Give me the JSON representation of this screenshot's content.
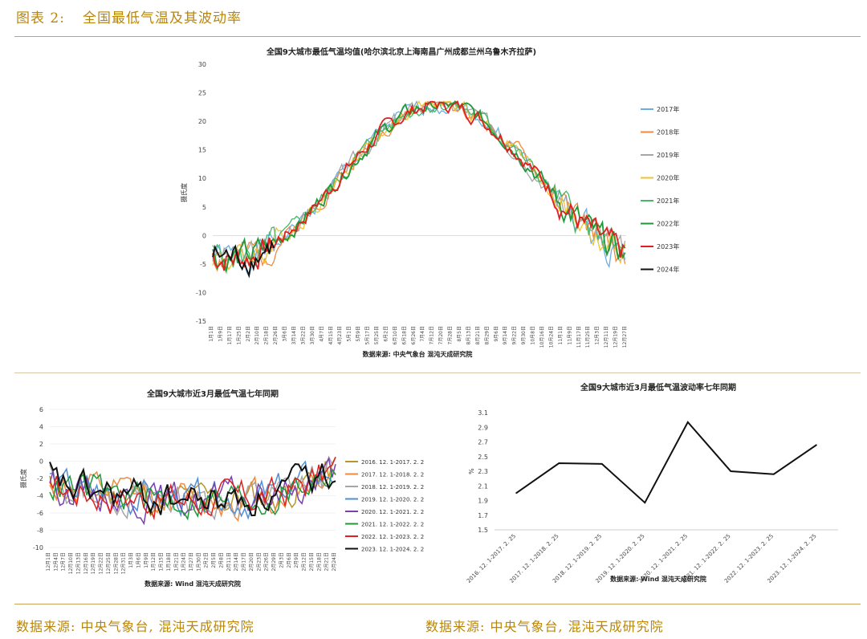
{
  "figure": {
    "label": "图表 2:",
    "title": "全国最低气温及其波动率"
  },
  "footer": {
    "left_source": "数据来源: 中央气象台, 混沌天成研究院",
    "right_source": "数据来源: 中央气象台, 混沌天成研究院"
  },
  "colors": {
    "accent": "#b8860b",
    "rule": "#c9a25a"
  },
  "chart_data": [
    {
      "type": "line",
      "title": "全国9大城市最低气温均值(哈尔滨北京上海南昌广州成都兰州乌鲁木齐拉萨)",
      "ylabel": "摄氏度",
      "source_note": "数据来源: 中央气象台 混沌天成研究院",
      "ylim": [
        -15,
        30
      ],
      "yticks": [
        30,
        25,
        20,
        15,
        10,
        5,
        0,
        -5,
        -10,
        -15
      ],
      "x_tick_labels": [
        "1月1日",
        "1月9日",
        "1月17日",
        "1月25日",
        "2月2日",
        "2月10日",
        "2月18日",
        "2月26日",
        "3月6日",
        "3月14日",
        "3月22日",
        "3月30日",
        "4月7日",
        "4月15日",
        "4月23日",
        "5月1日",
        "5月9日",
        "5月17日",
        "5月25日",
        "6月2日",
        "6月10日",
        "6月18日",
        "6月26日",
        "7月4日",
        "7月12日",
        "7月20日",
        "7月28日",
        "8月5日",
        "8月13日",
        "8月21日",
        "8月29日",
        "9月6日",
        "9月14日",
        "9月22日",
        "9月30日",
        "10月8日",
        "10月16日",
        "10月24日",
        "11月1日",
        "11月9日",
        "11月17日",
        "11月25日",
        "12月3日",
        "12月11日",
        "12月19日",
        "12月27日"
      ],
      "legend_position": "right",
      "series": [
        {
          "name": "2017年",
          "color": "#6aaee6",
          "seed": 1
        },
        {
          "name": "2018年",
          "color": "#f08a3e",
          "seed": 2
        },
        {
          "name": "2019年",
          "color": "#a6a6a6",
          "seed": 3
        },
        {
          "name": "2020年",
          "color": "#f2c12e",
          "seed": 4
        },
        {
          "name": "2021年",
          "color": "#46b86b",
          "seed": 5
        },
        {
          "name": "2022年",
          "color": "#1f9a3a",
          "seed": 6
        },
        {
          "name": "2023年",
          "color": "#e02020",
          "seed": 7
        },
        {
          "name": "2024年",
          "color": "#111111",
          "seed": 8,
          "days": 56
        }
      ],
      "profile_note": "annual curve peaking near 23 around late July, near -4 in January"
    },
    {
      "type": "line",
      "title": "全国9大城市近3月最低气温七年同期",
      "ylabel": "摄氏度",
      "source_note": "数据来源: Wind 混沌天成研究院",
      "ylim": [
        -10,
        6
      ],
      "yticks": [
        6,
        4,
        2,
        0,
        -2,
        -4,
        -6,
        -8,
        -10
      ],
      "x_tick_labels": [
        "12月1日",
        "12月4日",
        "12月7日",
        "12月10日",
        "12月13日",
        "12月16日",
        "12月19日",
        "12月22日",
        "12月25日",
        "12月28日",
        "12月31日",
        "1月3日",
        "1月6日",
        "1月9日",
        "1月12日",
        "1月15日",
        "1月18日",
        "1月21日",
        "1月24日",
        "1月27日",
        "1月30日",
        "2月2日",
        "2月5日",
        "2月8日",
        "2月11日",
        "2月14日",
        "2月17日",
        "2月20日",
        "2月23日",
        "2月26日",
        "2月29日",
        "2月3日",
        "2月6日",
        "2月9日",
        "2月12日",
        "2月15日",
        "2月18日",
        "2月21日",
        "2月24日"
      ],
      "legend_position": "right",
      "series": [
        {
          "name": "2016. 12. 1-2017. 2. 2",
          "color": "#b8962e",
          "seed": 11
        },
        {
          "name": "2017. 12. 1-2018. 2. 2",
          "color": "#f08a3e",
          "seed": 12
        },
        {
          "name": "2018. 12. 1-2019. 2. 2",
          "color": "#a6a6a6",
          "seed": 13
        },
        {
          "name": "2019. 12. 1-2020. 2. 2",
          "color": "#4f8fd6",
          "seed": 14
        },
        {
          "name": "2020. 12. 1-2021. 2. 2",
          "color": "#7a3fb0",
          "seed": 15
        },
        {
          "name": "2021. 12. 1-2022. 2. 2",
          "color": "#1f9a3a",
          "seed": 16
        },
        {
          "name": "2022. 12. 1-2023. 2. 2",
          "color": "#e02020",
          "seed": 17
        },
        {
          "name": "2023. 12. 1-2024. 2. 2",
          "color": "#111111",
          "seed": 18
        }
      ]
    },
    {
      "type": "line",
      "title": "全国9大城市近3月最低气温波动率七年同期",
      "ylabel": "%",
      "source_note": "数据来源: Wind 混沌天成研究院",
      "ylim": [
        1.5,
        3.1
      ],
      "yticks": [
        3.1,
        2.9,
        2.7,
        2.5,
        2.3,
        2.1,
        1.9,
        1.7,
        1.5
      ],
      "categories": [
        "2016.12.1-2017.2.25",
        "2017.12.1-2018.2.25",
        "2018.12.1-2019.2.25",
        "2019.12.1-2020.2.25",
        "2020.12.1-2021.2.25",
        "2021.12.1-2022.2.25",
        "2022.12.1-2023.2.25",
        "2023.12.1-2024.2.25"
      ],
      "x_tick_labels": [
        "2016. 12. 1-2017. 2. 25",
        "2017. 12. 1-2018. 2. 25",
        "2018. 12. 1-2019. 2. 25",
        "2019. 12. 1-2020. 2. 25",
        "2020. 12. 1-2021. 2. 25",
        "2021. 12. 1-2022. 2. 25",
        "2022. 12. 1-2023. 2. 25",
        "2023. 12. 1-2024. 2. 25"
      ],
      "values": [
        2.0,
        2.41,
        2.4,
        1.87,
        2.97,
        2.3,
        2.26,
        2.66
      ],
      "series": [
        {
          "color": "#111111"
        }
      ]
    }
  ]
}
